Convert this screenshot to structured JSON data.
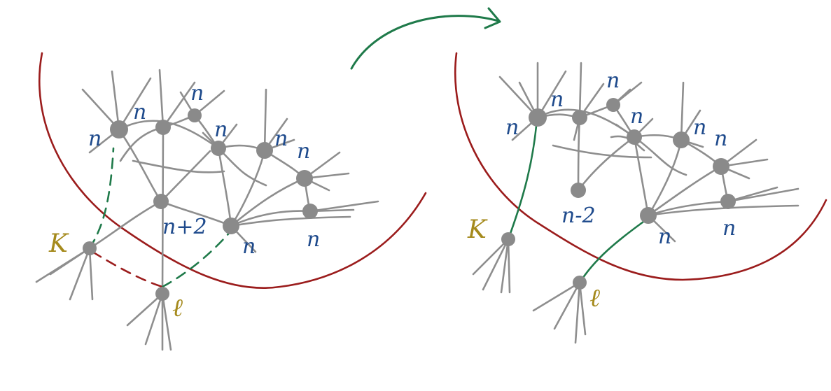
{
  "colors": {
    "boundary": "#9b1c1c",
    "edge": "#8e8e8e",
    "node": "#8a8a8a",
    "new_edge": "#1f7a4a",
    "removed_edge": "#9b1c1c",
    "degree_label": "#1e4a8c",
    "vertex_label": "#a58a1c",
    "arrow": "#1f7a4a"
  },
  "left_panel": {
    "degree_labels": [
      "n",
      "n",
      "n",
      "n",
      "n",
      "n",
      "n+2",
      "n",
      "n"
    ],
    "vertex_labels": [
      "K",
      "ℓ"
    ]
  },
  "right_panel": {
    "degree_labels": [
      "n",
      "n",
      "n",
      "n",
      "n",
      "n",
      "n-2",
      "n",
      "n"
    ],
    "vertex_labels": [
      "K",
      "ℓ"
    ]
  }
}
